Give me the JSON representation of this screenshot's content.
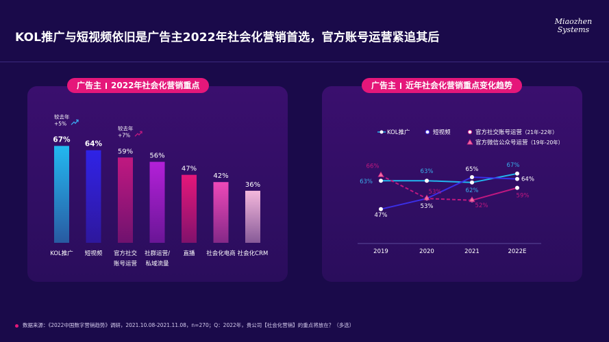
{
  "title": "KOL推广与短视频依旧是广告主2022年社会化营销首选，官方账号运营紧追其后",
  "logo": {
    "line1": "Miaozhen",
    "line2": "Systems"
  },
  "footer": "数据来源：《2022中国数字营销趋势》调研，2021.10.08-2021.11.08，n=270；Q：2022年，贵公司【社会化营销】的重点将放在？（多选）",
  "left_panel": {
    "pill_a": "广告主",
    "pill_b": "2022年社会化营销重点"
  },
  "right_panel": {
    "pill_a": "广告主",
    "pill_b": "近年社会化营销重点变化趋势"
  },
  "chart_data": [
    {
      "type": "bar",
      "title": "2022年社会化营销重点",
      "categories": [
        "KOL推广",
        "短视频",
        "官方社交\n账号运营",
        "社群运营/\n私域流量",
        "直播",
        "社会化电商",
        "社会化CRM"
      ],
      "values": [
        67,
        64,
        59,
        56,
        47,
        42,
        36
      ],
      "value_labels": [
        "67%",
        "64%",
        "59%",
        "56%",
        "47%",
        "42%",
        "36%"
      ],
      "colors": [
        "#22b8f0",
        "#2f23e6",
        "#c01880",
        "#b320d8",
        "#e5177a",
        "#ee49b8",
        "#f4b8dc"
      ],
      "annotations": [
        {
          "category": "KOL推广",
          "lines": [
            "较去年",
            "+5%"
          ],
          "color": "#3aa9f0"
        },
        {
          "category": "官方社交\n账号运营",
          "lines": [
            "较去年",
            "+7%"
          ],
          "color": "#c01880"
        }
      ],
      "ylim": [
        0,
        70
      ]
    },
    {
      "type": "line",
      "title": "近年社会化营销重点变化趋势",
      "x": [
        "2019",
        "2020",
        "2021",
        "2022E"
      ],
      "ylim": [
        30,
        80
      ],
      "series": [
        {
          "name": "KOL推广",
          "values": [
            63,
            63,
            62,
            67
          ],
          "labels": [
            "63%",
            "63%",
            "62%",
            "67%"
          ],
          "color": "#22b8f0",
          "dashed": false
        },
        {
          "name": "短视频",
          "values": [
            47,
            53,
            65,
            64
          ],
          "labels": [
            "47%",
            "53%",
            "65%",
            "64%"
          ],
          "color": "#3b2fe6",
          "dashed": false
        },
        {
          "name": "官方社交账号运营",
          "values": [
            null,
            null,
            52,
            59
          ],
          "labels": [
            "",
            "",
            "52%",
            "59%"
          ],
          "color": "#c01880",
          "dashed": false
        },
        {
          "name": "官方微信公众号运营",
          "values": [
            66,
            53,
            52,
            null
          ],
          "labels": [
            "66%",
            "53%",
            "",
            ""
          ],
          "color": "#c01880",
          "dashed": true
        }
      ],
      "legend": [
        {
          "label": "KOL推广",
          "sub": ""
        },
        {
          "label": "短视频",
          "sub": ""
        },
        {
          "label": "官方社交账号运营",
          "sub": "（21年-22年）"
        },
        {
          "label": "官方微信公众号运营",
          "sub": "（19年-20年）"
        }
      ]
    }
  ]
}
